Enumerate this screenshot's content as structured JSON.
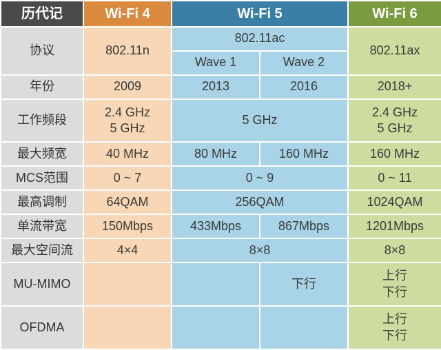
{
  "colors": {
    "label_bg": "#dcdcdc",
    "label_text": "#333333",
    "header_text": "#ffffff",
    "header_label_bg": "#4a4a4a",
    "wifi4_header_bg": "#d98a3e",
    "wifi5_header_bg": "#3b7fa6",
    "wifi6_header_bg": "#7a9b3f",
    "wifi4_bg": "#f7d7b5",
    "wifi5_bg": "#a9d3e6",
    "wifi6_bg": "#cddc9f",
    "cell_text": "#3a3a3a"
  },
  "layout": {
    "col_widths": [
      "120px",
      "128px",
      "128px",
      "128px",
      "136px"
    ],
    "font_size": 18,
    "header_font_size": 20,
    "border_color": "#ffffff",
    "border_width": 2
  },
  "header": {
    "label": "历代记",
    "wifi4": "Wi-Fi 4",
    "wifi5": "Wi-Fi 5",
    "wifi6": "Wi-Fi 6"
  },
  "rows": {
    "protocol": {
      "label": "协议",
      "wifi4": "802.11n",
      "wifi5_top": "802.11ac",
      "wifi5_wave1": "Wave 1",
      "wifi5_wave2": "Wave 2",
      "wifi6": "802.11ax"
    },
    "year": {
      "label": "年份",
      "wifi4": "2009",
      "wifi5_w1": "2013",
      "wifi5_w2": "2016",
      "wifi6": "2018+"
    },
    "band": {
      "label": "工作频段",
      "wifi4_l1": "2.4 GHz",
      "wifi4_l2": "5 GHz",
      "wifi5": "5 GHz",
      "wifi6_l1": "2.4 GHz",
      "wifi6_l2": "5 GHz"
    },
    "bw": {
      "label": "最大频宽",
      "wifi4": "40 MHz",
      "wifi5_w1": "80 MHz",
      "wifi5_w2": "160 MHz",
      "wifi6": "160 MHz"
    },
    "mcs": {
      "label": "MCS范围",
      "wifi4": "0 ~ 7",
      "wifi5": "0 ~ 9",
      "wifi6": "0 ~ 11"
    },
    "mod": {
      "label": "最高调制",
      "wifi4": "64QAM",
      "wifi5": "256QAM",
      "wifi6": "1024QAM"
    },
    "single": {
      "label": "单流带宽",
      "wifi4": "150Mbps",
      "wifi5_w1": "433Mbps",
      "wifi5_w2": "867Mbps",
      "wifi6": "1201Mbps"
    },
    "streams": {
      "label": "最大空间流",
      "wifi4": "4×4",
      "wifi5": "8×8",
      "wifi6": "8×8"
    },
    "mumimo": {
      "label": "MU-MIMO",
      "wifi4": "",
      "wifi5_w1": "",
      "wifi5_w2": "下行",
      "wifi6_l1": "上行",
      "wifi6_l2": "下行"
    },
    "ofdma": {
      "label": "OFDMA",
      "wifi4": "",
      "wifi5_w1": "",
      "wifi5_w2": "",
      "wifi6_l1": "上行",
      "wifi6_l2": "下行"
    }
  }
}
